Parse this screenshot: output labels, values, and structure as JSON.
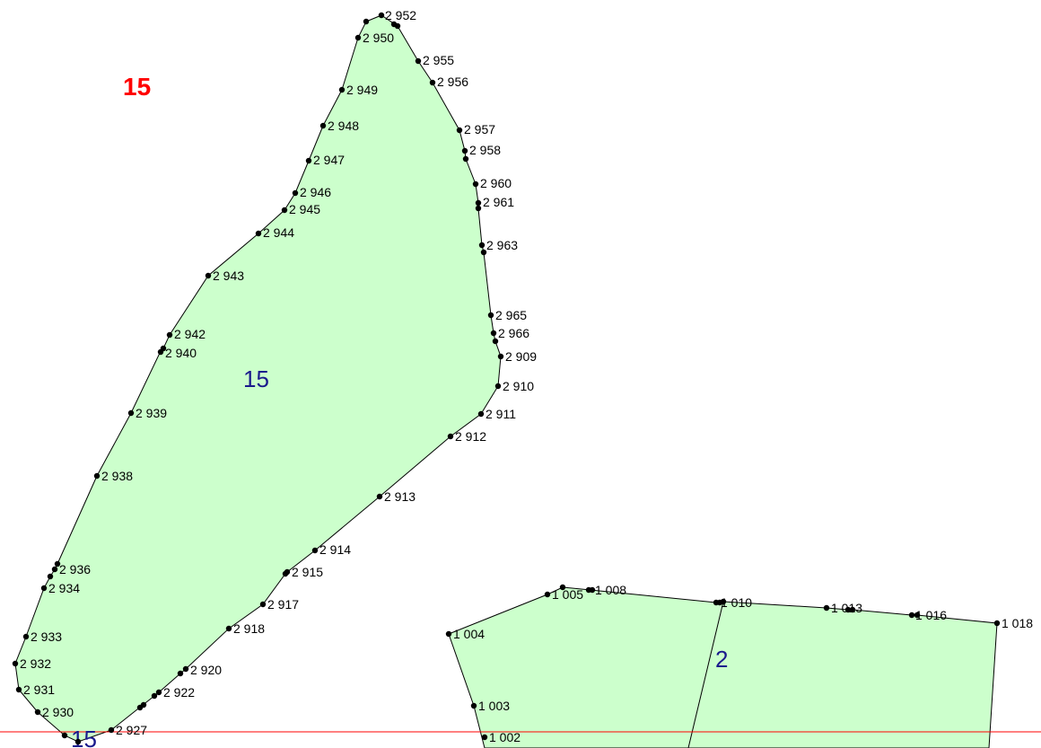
{
  "colors": {
    "parcel_fill": "#ccffcc",
    "parcel_stroke": "#000000",
    "parcel_label": "#1a1a8c",
    "sheet_label": "#ff0000",
    "boundary_line": "#ff0000",
    "point": "#000000"
  },
  "sheet_label": "15",
  "parcels": [
    {
      "id": "parcel-15-main",
      "label": "15"
    },
    {
      "id": "parcel-2",
      "label": "2"
    },
    {
      "id": "parcel-15-partial",
      "label": "15"
    }
  ],
  "points": {
    "p2952": "2 952",
    "p2950": "2 950",
    "p2955": "2 955",
    "p2956": "2 956",
    "p2949": "2 949",
    "p2948": "2 948",
    "p2957": "2 957",
    "p2958": "2 958",
    "p2947": "2 947",
    "p2960": "2 960",
    "p2946": "2 946",
    "p2961": "2 961",
    "p2945": "2 945",
    "p2944": "2 944",
    "p2963": "2 963",
    "p2943": "2 943",
    "p2965": "2 965",
    "p2942": "2 942",
    "p2966": "2 966",
    "p2940": "2 940",
    "p2909": "2 909",
    "p2910": "2 910",
    "p2939": "2 939",
    "p2911": "2 911",
    "p2912": "2 912",
    "p2938": "2 938",
    "p2913": "2 913",
    "p2914": "2 914",
    "p2936": "2 936",
    "p2915": "2 915",
    "p2934": "2 934",
    "p2917": "2 917",
    "p2918": "2 918",
    "p2933": "2 933",
    "p2932": "2 932",
    "p2920": "2 920",
    "p2922": "2 922",
    "p2931": "2 931",
    "p2930": "2 930",
    "p2927": "2 927",
    "p1005": "1 005",
    "p1008": "1 008",
    "p1010": "1 010",
    "p1013": "1 013",
    "p1016": "1 016",
    "p1018": "1 018",
    "p1004": "1 004",
    "p1003": "1 003",
    "p1002": "1 002"
  }
}
